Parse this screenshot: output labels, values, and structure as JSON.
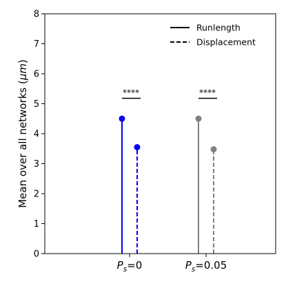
{
  "chart_data": {
    "type": "lollipop",
    "categories": [
      "Ps=0",
      "Ps=0.05"
    ],
    "category_labels": [
      {
        "var": "P",
        "sub": "s",
        "rest": "=0"
      },
      {
        "var": "P",
        "sub": "s",
        "rest": "=0.05"
      }
    ],
    "series": [
      {
        "name": "Runlength",
        "linestyle": "solid",
        "values": [
          4.5,
          4.5
        ]
      },
      {
        "name": "Displacement",
        "linestyle": "dashed",
        "values": [
          3.55,
          3.48
        ]
      }
    ],
    "category_colors": [
      "#0000ee",
      "#808080"
    ],
    "ylabel": {
      "text": "Mean over all networks (",
      "unit": "μm",
      "close": ")"
    },
    "xlabel": "",
    "ylim": [
      0,
      8
    ],
    "yticks": [
      "0",
      "1",
      "2",
      "3",
      "4",
      "5",
      "6",
      "7",
      "8"
    ],
    "significance": [
      {
        "category": "Ps=0",
        "label": "****",
        "y": 5.18
      },
      {
        "category": "Ps=0.05",
        "label": "****",
        "y": 5.18
      }
    ],
    "legend": {
      "placement": "top-right",
      "entries": [
        "Runlength",
        "Displacement"
      ]
    },
    "grid": false
  }
}
